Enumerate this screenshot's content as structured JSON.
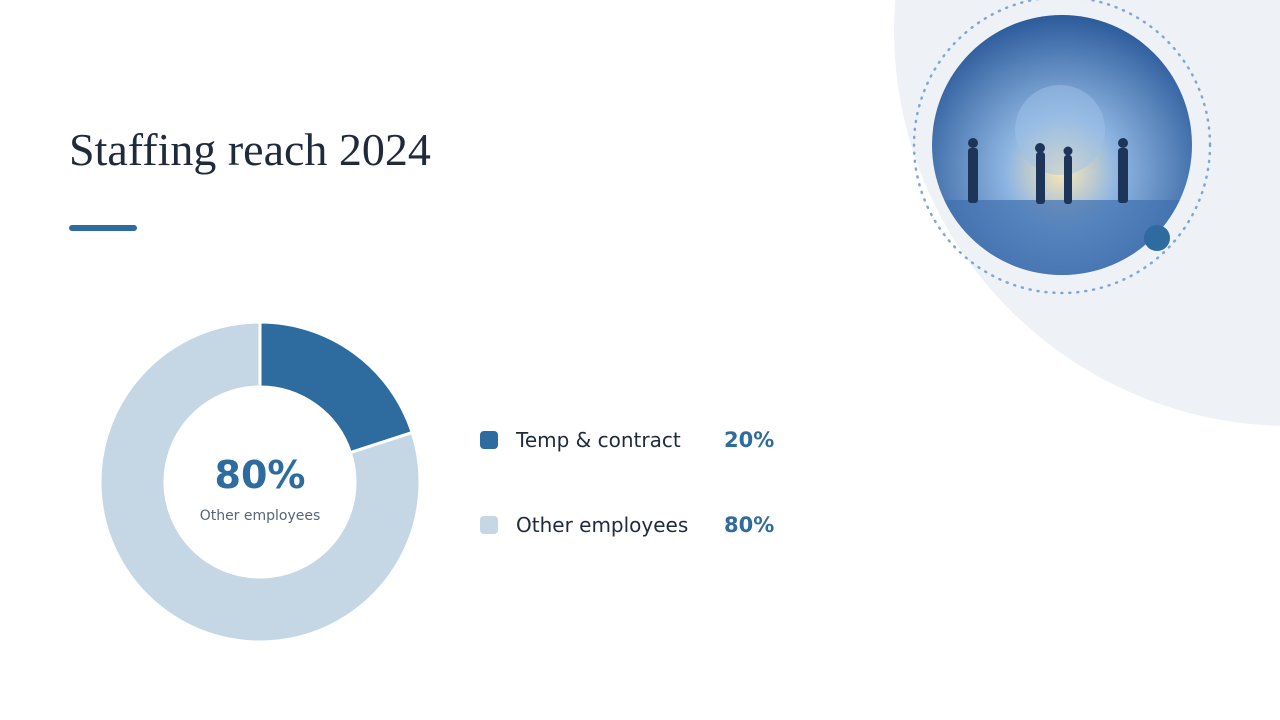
{
  "chart_data": {
    "type": "donut",
    "title": "Staffing reach 2024",
    "categories": [
      "Temp & contract",
      "Other employees"
    ],
    "values": [
      20,
      80
    ],
    "value_labels": [
      "20%",
      "80%"
    ],
    "colors": [
      "#2e6b9e",
      "#c5d6e5"
    ]
  }
}
